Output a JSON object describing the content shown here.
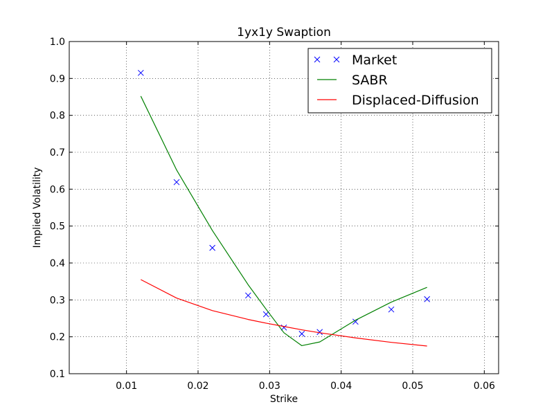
{
  "chart_data": {
    "type": "line",
    "title": "1yx1y Swaption",
    "xlabel": "Strike",
    "ylabel": "Implied Volatility",
    "xlim": [
      0.002,
      0.062
    ],
    "ylim": [
      0.1,
      1.0
    ],
    "xticks": [
      0.01,
      0.02,
      0.03,
      0.04,
      0.05,
      0.06
    ],
    "yticks": [
      0.1,
      0.2,
      0.3,
      0.4,
      0.5,
      0.6,
      0.7,
      0.8,
      0.9,
      1.0
    ],
    "xtick_labels": [
      "0.01",
      "0.02",
      "0.03",
      "0.04",
      "0.05",
      "0.06"
    ],
    "ytick_labels": [
      "0.1",
      "0.2",
      "0.3",
      "0.4",
      "0.5",
      "0.6",
      "0.7",
      "0.8",
      "0.9",
      "1.0"
    ],
    "grid": true,
    "legend_position": "top-right",
    "series": [
      {
        "name": "Market",
        "style": "markers",
        "marker": "x",
        "color": "#0000ff",
        "x": [
          0.012,
          0.017,
          0.022,
          0.027,
          0.0295,
          0.032,
          0.0345,
          0.037,
          0.042,
          0.047,
          0.052
        ],
        "y": [
          0.915,
          0.619,
          0.441,
          0.312,
          0.261,
          0.225,
          0.208,
          0.213,
          0.241,
          0.274,
          0.302
        ]
      },
      {
        "name": "SABR",
        "style": "line",
        "color": "#008000",
        "x": [
          0.012,
          0.017,
          0.022,
          0.027,
          0.0295,
          0.032,
          0.0345,
          0.037,
          0.042,
          0.047,
          0.052
        ],
        "y": [
          0.852,
          0.652,
          0.488,
          0.341,
          0.275,
          0.211,
          0.176,
          0.186,
          0.245,
          0.294,
          0.334
        ]
      },
      {
        "name": "Displaced-Diffusion",
        "style": "line",
        "color": "#ff0000",
        "x": [
          0.012,
          0.017,
          0.022,
          0.027,
          0.0295,
          0.032,
          0.0345,
          0.037,
          0.042,
          0.047,
          0.052
        ],
        "y": [
          0.355,
          0.305,
          0.271,
          0.247,
          0.237,
          0.228,
          0.219,
          0.211,
          0.197,
          0.185,
          0.175
        ]
      }
    ]
  }
}
